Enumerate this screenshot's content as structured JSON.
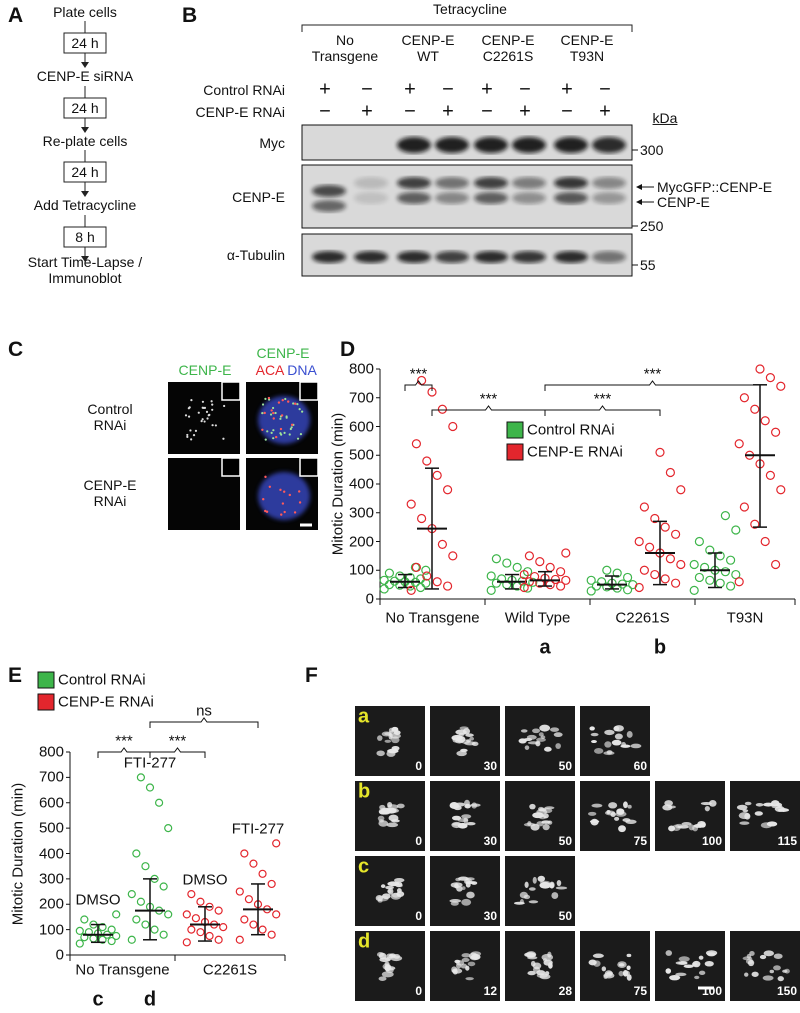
{
  "panels": {
    "a": {
      "label": "A",
      "steps": [
        "Plate cells",
        "CENP-E siRNA",
        "Re-plate cells",
        "Add Tetracycline",
        "Start Time-Lapse / Immunoblot"
      ],
      "intervals": [
        "24 h",
        "24 h",
        "24 h",
        "8 h"
      ]
    },
    "b": {
      "label": "B",
      "treatment": "Tetracycline",
      "columns": [
        "No Transgene",
        "CENP-E WT",
        "CENP-E C2261S",
        "CENP-E T93N"
      ],
      "conditions": [
        {
          "name": "Control RNAi",
          "marks": [
            "+",
            "−",
            "+",
            "−",
            "+",
            "−",
            "+",
            "−"
          ]
        },
        {
          "name": "CENP-E RNAi",
          "marks": [
            "−",
            "+",
            "−",
            "+",
            "−",
            "+",
            "−",
            "+"
          ]
        }
      ],
      "blots": [
        "Myc",
        "CENP-E",
        "α-Tubulin"
      ],
      "unit": "kDa",
      "markers": [
        300,
        250,
        55
      ],
      "arrows": [
        "MycGFP::CENP-E",
        "CENP-E"
      ]
    },
    "c": {
      "label": "C",
      "column_1": "CENP-E",
      "merge": [
        {
          "name": "CENP-E",
          "color": "#3db54a"
        },
        {
          "name": "ACA",
          "color": "#e3262d"
        },
        {
          "name": "DNA",
          "color": "#3a4fd0"
        }
      ],
      "rows": [
        "Control RNAi",
        "CENP-E RNAi"
      ]
    },
    "f": {
      "label": "F",
      "rows": [
        {
          "label": "a",
          "times": [
            "0",
            "30",
            "50",
            "60"
          ]
        },
        {
          "label": "b",
          "times": [
            "0",
            "30",
            "50",
            "75",
            "100",
            "115"
          ]
        },
        {
          "label": "c",
          "times": [
            "0",
            "30",
            "50"
          ]
        },
        {
          "label": "d",
          "times": [
            "0",
            "12",
            "28",
            "75",
            "100",
            "150"
          ]
        }
      ]
    }
  },
  "chart_data": [
    {
      "type": "scatter",
      "panel": "D",
      "ylabel": "Mitotic Duration (min)",
      "ylim": [
        0,
        800
      ],
      "yticks": [
        0,
        100,
        200,
        300,
        400,
        500,
        600,
        700,
        800
      ],
      "series": [
        {
          "name": "Control RNAi",
          "color": "#3db54a"
        },
        {
          "name": "CENP-E RNAi",
          "color": "#e3262d"
        }
      ],
      "groups": [
        "No Transgene",
        "Wild Type",
        "C2261S",
        "T93N"
      ],
      "columns": [
        {
          "series": 0,
          "group": 0,
          "label": null,
          "median": 60,
          "lower": 40,
          "upper": 85,
          "points": [
            35,
            40,
            45,
            48,
            50,
            55,
            58,
            60,
            62,
            65,
            70,
            75,
            80,
            90,
            100,
            110
          ]
        },
        {
          "series": 1,
          "group": 0,
          "label": null,
          "median": 245,
          "lower": 35,
          "upper": 455,
          "points": [
            30,
            45,
            60,
            80,
            110,
            150,
            190,
            245,
            280,
            330,
            380,
            430,
            480,
            540,
            600,
            660,
            720,
            760
          ]
        },
        {
          "series": 0,
          "group": 1,
          "label": null,
          "median": 60,
          "lower": 35,
          "upper": 85,
          "points": [
            30,
            38,
            45,
            50,
            55,
            58,
            62,
            65,
            70,
            80,
            95,
            110,
            125,
            140
          ]
        },
        {
          "series": 1,
          "group": 1,
          "label": "a",
          "median": 65,
          "lower": 45,
          "upper": 95,
          "points": [
            40,
            45,
            50,
            55,
            60,
            65,
            68,
            72,
            78,
            85,
            95,
            110,
            130,
            150,
            160
          ]
        },
        {
          "series": 0,
          "group": 2,
          "label": null,
          "median": 50,
          "lower": 35,
          "upper": 80,
          "points": [
            28,
            32,
            38,
            42,
            45,
            50,
            52,
            55,
            60,
            65,
            75,
            90,
            100
          ]
        },
        {
          "series": 1,
          "group": 2,
          "label": "b",
          "median": 160,
          "lower": 50,
          "upper": 270,
          "points": [
            40,
            55,
            70,
            85,
            100,
            120,
            140,
            160,
            180,
            200,
            225,
            250,
            280,
            320,
            380,
            440,
            510
          ]
        },
        {
          "series": 0,
          "group": 3,
          "label": null,
          "median": 100,
          "lower": 40,
          "upper": 160,
          "points": [
            30,
            45,
            55,
            65,
            75,
            85,
            95,
            100,
            110,
            120,
            135,
            150,
            170,
            200,
            240,
            290
          ]
        },
        {
          "series": 1,
          "group": 3,
          "label": null,
          "median": 500,
          "lower": 250,
          "upper": 745,
          "points": [
            60,
            120,
            200,
            260,
            320,
            380,
            430,
            470,
            500,
            540,
            580,
            620,
            660,
            700,
            740,
            770,
            800
          ]
        }
      ],
      "significance": [
        {
          "label": "***",
          "between": [
            0,
            1
          ]
        },
        {
          "label": "***",
          "between": [
            1,
            3
          ]
        },
        {
          "label": "***",
          "between": [
            3,
            5
          ]
        },
        {
          "label": "***",
          "between": [
            3,
            7
          ]
        }
      ]
    },
    {
      "type": "scatter",
      "panel": "E",
      "ylabel": "Mitotic Duration (min)",
      "ylim": [
        0,
        800
      ],
      "yticks": [
        0,
        100,
        200,
        300,
        400,
        500,
        600,
        700,
        800
      ],
      "series": [
        {
          "name": "Control RNAi",
          "color": "#3db54a"
        },
        {
          "name": "CENP-E RNAi",
          "color": "#e3262d"
        }
      ],
      "groups": [
        "No Transgene",
        "C2261S"
      ],
      "columns": [
        {
          "series": 0,
          "group": 0,
          "label": "c",
          "treatment": "DMSO",
          "median": 80,
          "lower": 50,
          "upper": 120,
          "points": [
            45,
            55,
            60,
            65,
            70,
            75,
            80,
            85,
            90,
            95,
            100,
            110,
            120,
            140,
            160
          ]
        },
        {
          "series": 0,
          "group": 0,
          "label": "d",
          "treatment": "FTI-277",
          "median": 175,
          "lower": 60,
          "upper": 300,
          "points": [
            60,
            80,
            100,
            120,
            140,
            160,
            175,
            190,
            210,
            240,
            270,
            300,
            350,
            400,
            500,
            600,
            660,
            700
          ]
        },
        {
          "series": 1,
          "group": 1,
          "label": null,
          "treatment": "DMSO",
          "median": 120,
          "lower": 55,
          "upper": 190,
          "points": [
            50,
            60,
            75,
            90,
            100,
            110,
            120,
            130,
            145,
            160,
            175,
            190,
            210,
            240
          ]
        },
        {
          "series": 1,
          "group": 1,
          "label": null,
          "treatment": "FTI-277",
          "median": 180,
          "lower": 80,
          "upper": 280,
          "points": [
            60,
            80,
            100,
            120,
            140,
            160,
            180,
            200,
            220,
            250,
            280,
            320,
            360,
            400,
            440
          ]
        }
      ],
      "significance": [
        {
          "label": "***",
          "between": [
            0,
            1
          ]
        },
        {
          "label": "***",
          "between": [
            1,
            2
          ]
        },
        {
          "label": "ns",
          "between": [
            1,
            3
          ]
        }
      ]
    }
  ]
}
